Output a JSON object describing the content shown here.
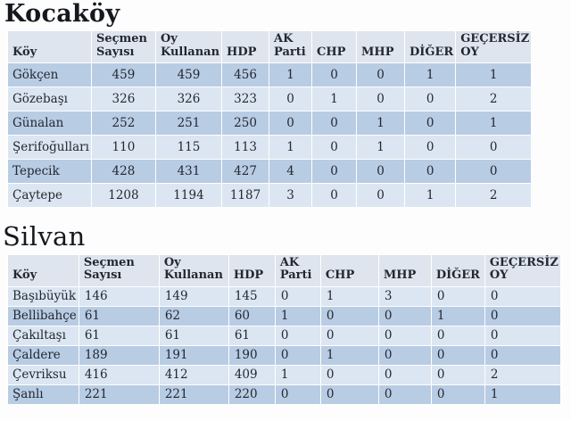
{
  "columns": [
    "Köy",
    "Seçmen Sayısı",
    "Oy Kullanan",
    "HDP",
    "AK Parti",
    "CHP",
    "MHP",
    "DİĞER",
    "GEÇERSİZ OY"
  ],
  "sections": [
    {
      "title": "Kocaköy",
      "rows": [
        [
          "Gökçen",
          "459",
          "459",
          "456",
          "1",
          "0",
          "0",
          "1",
          "1"
        ],
        [
          "Gözebaşı",
          "326",
          "326",
          "323",
          "0",
          "1",
          "0",
          "0",
          "2"
        ],
        [
          "Günalan",
          "252",
          "251",
          "250",
          "0",
          "0",
          "1",
          "0",
          "1"
        ],
        [
          "Şerifoğulları",
          "110",
          "115",
          "113",
          "1",
          "0",
          "1",
          "0",
          "0"
        ],
        [
          "Tepecik",
          "428",
          "431",
          "427",
          "4",
          "0",
          "0",
          "0",
          "0"
        ],
        [
          "Çaytepe",
          "1208",
          "1194",
          "1187",
          "3",
          "0",
          "0",
          "1",
          "2"
        ]
      ]
    },
    {
      "title": "Silvan",
      "rows": [
        [
          "Başıbüyük",
          "146",
          "149",
          "145",
          "0",
          "1",
          "3",
          "0",
          "0"
        ],
        [
          "Bellibahçe",
          "61",
          "62",
          "60",
          "1",
          "0",
          "0",
          "1",
          "0"
        ],
        [
          "Çakıltaşı",
          "61",
          "61",
          "61",
          "0",
          "0",
          "0",
          "0",
          "0"
        ],
        [
          "Çaldere",
          "189",
          "191",
          "190",
          "0",
          "1",
          "0",
          "0",
          "0"
        ],
        [
          "Çevriksu",
          "416",
          "412",
          "409",
          "1",
          "0",
          "0",
          "0",
          "2"
        ],
        [
          "Şanlı",
          "221",
          "221",
          "220",
          "0",
          "0",
          "0",
          "0",
          "1"
        ]
      ]
    }
  ],
  "colors": {
    "band_dark": "#b8cce4",
    "band_light": "#dbe6f2",
    "header_bg": "#dee5ee",
    "grid_line": "#ffffff",
    "text": "#232830"
  }
}
